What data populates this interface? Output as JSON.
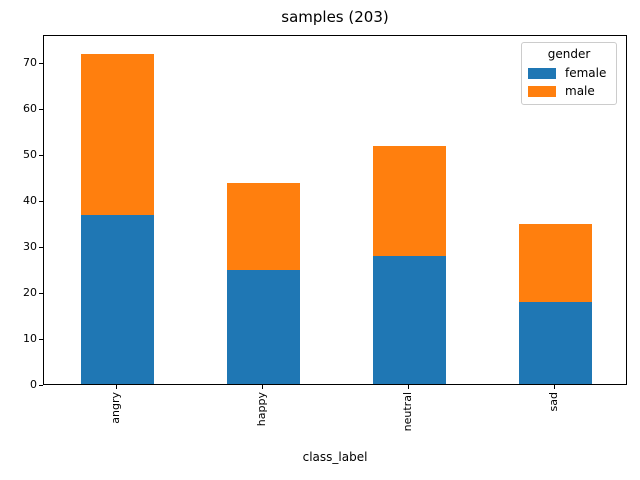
{
  "chart_data": {
    "type": "bar",
    "stacked": true,
    "title": "samples (203)",
    "xlabel": "class_label",
    "ylabel": "",
    "categories": [
      "angry",
      "happy",
      "neutral",
      "sad"
    ],
    "series": [
      {
        "name": "female",
        "color": "#1f77b4",
        "values": [
          37,
          25,
          28,
          18
        ]
      },
      {
        "name": "male",
        "color": "#ff7f0e",
        "values": [
          35,
          19,
          24,
          17
        ]
      }
    ],
    "totals": [
      72,
      44,
      52,
      35
    ],
    "yticks": [
      0,
      10,
      20,
      30,
      40,
      50,
      60,
      70
    ],
    "ylim": [
      0,
      76
    ],
    "grid": false,
    "xtick_rotation": 90,
    "legend": {
      "title": "gender",
      "position": "upper right"
    }
  }
}
